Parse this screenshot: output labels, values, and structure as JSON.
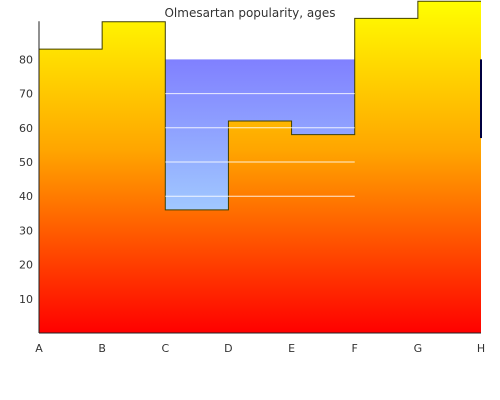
{
  "chart_data": {
    "type": "area",
    "title": "Olmesartan popularity, ages",
    "xlabel": "",
    "ylabel": "",
    "categories": [
      "A",
      "B",
      "C",
      "D",
      "E",
      "F",
      "G",
      "H"
    ],
    "x_ticks": [
      "A",
      "B",
      "C",
      "D",
      "E",
      "F",
      "G",
      "H"
    ],
    "y_ticks": [
      10,
      20,
      30,
      40,
      50,
      60,
      70,
      80
    ],
    "ylim": [
      0,
      97
    ],
    "step_values": [
      83,
      91,
      36,
      62,
      58,
      92,
      97
    ],
    "band_range": [
      36,
      80
    ],
    "band_categories": [
      "C",
      "F"
    ],
    "grid": true,
    "legend": "none",
    "colors": {
      "bar_top": "#ffff00",
      "bar_mid": "#ffa500",
      "bar_bottom": "#ff0000",
      "band_top": "#8080ff",
      "band_bottom": "#a0c8ff",
      "outline": "#404000",
      "axis": "#222222",
      "grid_line": "#ffffff",
      "right_edge": "#000040"
    }
  }
}
